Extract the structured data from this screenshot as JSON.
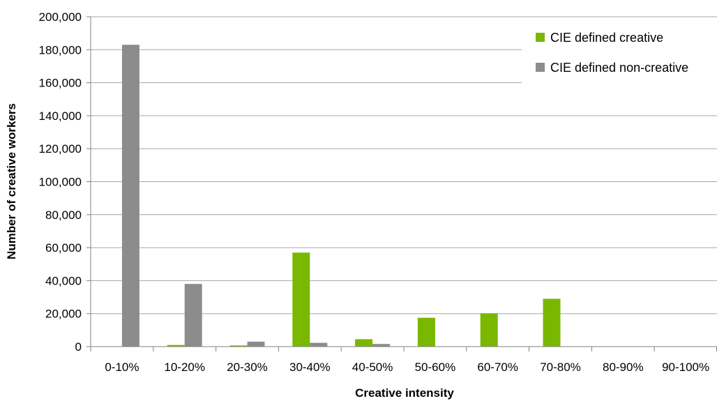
{
  "chart_data": {
    "type": "bar",
    "title": "",
    "xlabel": "Creative intensity",
    "ylabel": "Number of creative workers",
    "categories": [
      "0-10%",
      "10-20%",
      "20-30%",
      "30-40%",
      "40-50%",
      "50-60%",
      "60-70%",
      "70-80%",
      "80-90%",
      "90-100%"
    ],
    "series": [
      {
        "name": "CIE defined creative",
        "color": "#7ab800",
        "values": [
          0,
          1000,
          700,
          57000,
          4500,
          17500,
          20200,
          29000,
          0,
          0
        ]
      },
      {
        "name": "CIE defined non-creative",
        "color": "#8c8c8c",
        "values": [
          183000,
          38000,
          3000,
          2300,
          1600,
          0,
          0,
          0,
          0,
          0
        ]
      }
    ],
    "ylim": [
      0,
      200000
    ],
    "yticks": [
      0,
      20000,
      40000,
      60000,
      80000,
      100000,
      120000,
      140000,
      160000,
      180000,
      200000
    ],
    "ytick_labels": [
      "0",
      "20,000",
      "40,000",
      "60,000",
      "80,000",
      "100,000",
      "120,000",
      "140,000",
      "160,000",
      "180,000",
      "200,000"
    ],
    "grid": true,
    "legend_position": "top-right"
  }
}
